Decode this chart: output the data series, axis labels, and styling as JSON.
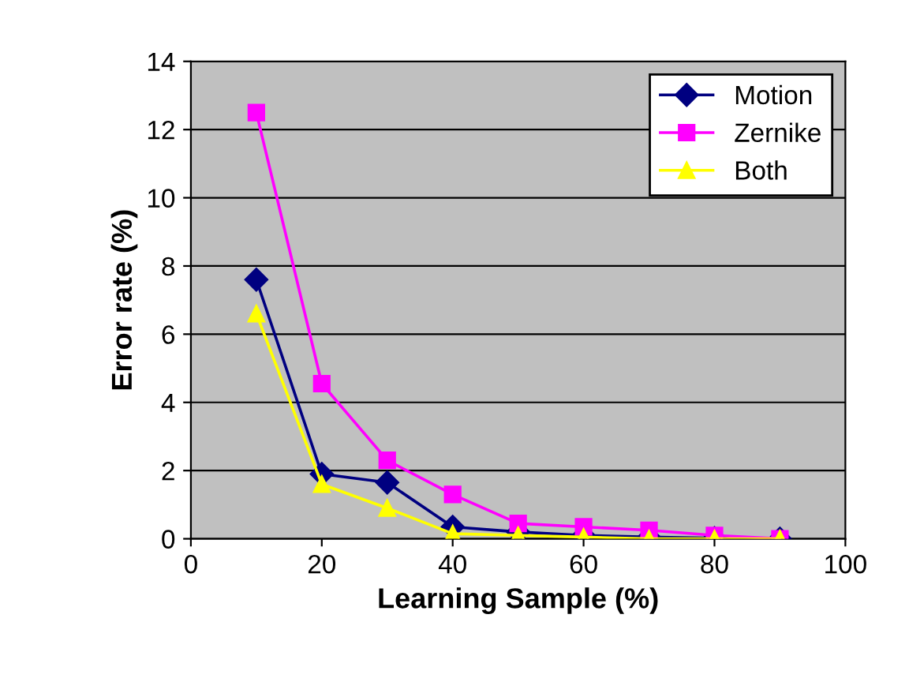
{
  "chart_data": {
    "type": "line",
    "xlabel": "Learning Sample (%)",
    "ylabel": "Error rate (%)",
    "x": [
      10,
      20,
      30,
      40,
      50,
      60,
      70,
      80,
      90
    ],
    "series": [
      {
        "name": "Motion",
        "color": "#000080",
        "marker": "diamond",
        "values": [
          7.6,
          1.9,
          1.65,
          0.35,
          0.2,
          0.1,
          0.05,
          0.02,
          0
        ]
      },
      {
        "name": "Zernike",
        "color": "#ff00ff",
        "marker": "square",
        "values": [
          12.5,
          4.55,
          2.3,
          1.3,
          0.45,
          0.35,
          0.25,
          0.1,
          0
        ]
      },
      {
        "name": "Both",
        "color": "#ffff00",
        "marker": "triangle",
        "values": [
          6.6,
          1.6,
          0.9,
          0.15,
          0.1,
          0.05,
          0,
          0,
          0
        ]
      }
    ],
    "xlim": [
      0,
      100
    ],
    "xticks": [
      0,
      20,
      40,
      60,
      80,
      100
    ],
    "ylim": [
      0,
      14
    ],
    "yticks": [
      0,
      2,
      4,
      6,
      8,
      10,
      12,
      14
    ],
    "grid": "y",
    "legend": "top right",
    "line_style": "solid"
  }
}
